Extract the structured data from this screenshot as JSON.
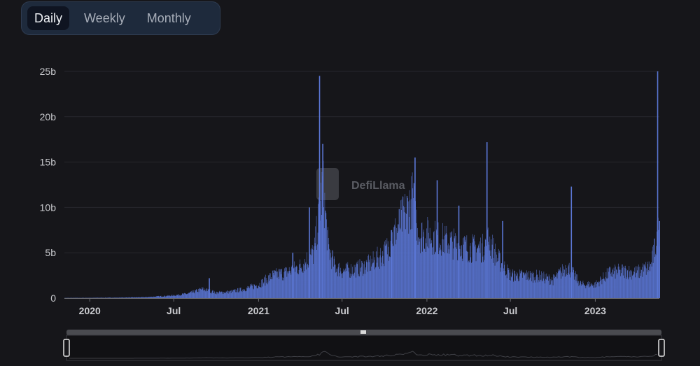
{
  "tabs": [
    {
      "label": "Daily",
      "active": true
    },
    {
      "label": "Weekly",
      "active": false
    },
    {
      "label": "Monthly",
      "active": false
    }
  ],
  "watermark": {
    "text": "DefiLlama"
  },
  "colors": {
    "bar": "#5b77d6",
    "background": "#16161a",
    "grid": "#26272d"
  },
  "chart_data": {
    "type": "bar",
    "title": "",
    "xlabel": "",
    "ylabel": "",
    "x_range": [
      "2019-11-07",
      "2023-05-20"
    ],
    "ylim": [
      0,
      25
    ],
    "y_unit": "b",
    "y_ticks": [
      {
        "value": 0,
        "label": "0"
      },
      {
        "value": 5,
        "label": "5b"
      },
      {
        "value": 10,
        "label": "10b"
      },
      {
        "value": 15,
        "label": "15b"
      },
      {
        "value": 20,
        "label": "20b"
      },
      {
        "value": 25,
        "label": "25b"
      }
    ],
    "x_ticks": [
      {
        "date": "2020-01-01",
        "label": "2020"
      },
      {
        "date": "2020-07-01",
        "label": "Jul"
      },
      {
        "date": "2021-01-01",
        "label": "2021"
      },
      {
        "date": "2021-07-01",
        "label": "Jul"
      },
      {
        "date": "2022-01-01",
        "label": "2022"
      },
      {
        "date": "2022-07-01",
        "label": "Jul"
      },
      {
        "date": "2023-01-01",
        "label": "2023"
      }
    ],
    "grid": true,
    "legend": "none",
    "series": [
      {
        "name": "",
        "points": [
          [
            "2019-11-07",
            0.02
          ],
          [
            "2020-01-01",
            0.03
          ],
          [
            "2020-03-01",
            0.05
          ],
          [
            "2020-05-01",
            0.1
          ],
          [
            "2020-06-01",
            0.2
          ],
          [
            "2020-07-01",
            0.3
          ],
          [
            "2020-08-01",
            0.5
          ],
          [
            "2020-09-01",
            1.0
          ],
          [
            "2020-10-01",
            0.6
          ],
          [
            "2020-11-01",
            0.7
          ],
          [
            "2020-12-01",
            1.0
          ],
          [
            "2021-01-01",
            1.5
          ],
          [
            "2021-02-01",
            2.5
          ],
          [
            "2021-03-01",
            2.8
          ],
          [
            "2021-04-01",
            3.5
          ],
          [
            "2021-05-01",
            5.0
          ],
          [
            "2021-05-20",
            12.5
          ],
          [
            "2021-06-01",
            5.5
          ],
          [
            "2021-06-15",
            3.5
          ],
          [
            "2021-07-01",
            3.0
          ],
          [
            "2021-08-01",
            3.2
          ],
          [
            "2021-09-01",
            3.8
          ],
          [
            "2021-10-01",
            5.0
          ],
          [
            "2021-11-01",
            8.0
          ],
          [
            "2021-12-01",
            11.0
          ],
          [
            "2021-12-15",
            7.0
          ],
          [
            "2022-01-01",
            7.0
          ],
          [
            "2022-02-01",
            6.5
          ],
          [
            "2022-03-01",
            6.0
          ],
          [
            "2022-04-01",
            5.5
          ],
          [
            "2022-05-01",
            5.5
          ],
          [
            "2022-05-15",
            6.5
          ],
          [
            "2022-06-01",
            4.5
          ],
          [
            "2022-07-01",
            2.5
          ],
          [
            "2022-08-01",
            2.5
          ],
          [
            "2022-09-01",
            2.4
          ],
          [
            "2022-10-01",
            2.0
          ],
          [
            "2022-11-01",
            3.5
          ],
          [
            "2022-12-01",
            1.5
          ],
          [
            "2023-01-01",
            1.5
          ],
          [
            "2023-02-01",
            2.8
          ],
          [
            "2023-03-01",
            3.0
          ],
          [
            "2023-04-01",
            2.8
          ],
          [
            "2023-05-01",
            3.5
          ],
          [
            "2023-05-20",
            8.0
          ]
        ],
        "spikes": [
          [
            "2020-09-15",
            2.2
          ],
          [
            "2021-03-15",
            5.0
          ],
          [
            "2021-04-20",
            10.0
          ],
          [
            "2021-05-12",
            24.5
          ],
          [
            "2021-05-19",
            17.0
          ],
          [
            "2021-10-15",
            7.5
          ],
          [
            "2021-12-05",
            15.5
          ],
          [
            "2022-01-22",
            13.0
          ],
          [
            "2022-03-10",
            10.2
          ],
          [
            "2022-05-10",
            17.2
          ],
          [
            "2022-06-13",
            8.5
          ],
          [
            "2022-11-09",
            12.3
          ],
          [
            "2023-05-15",
            25.0
          ],
          [
            "2023-05-19",
            8.5
          ]
        ]
      }
    ]
  }
}
